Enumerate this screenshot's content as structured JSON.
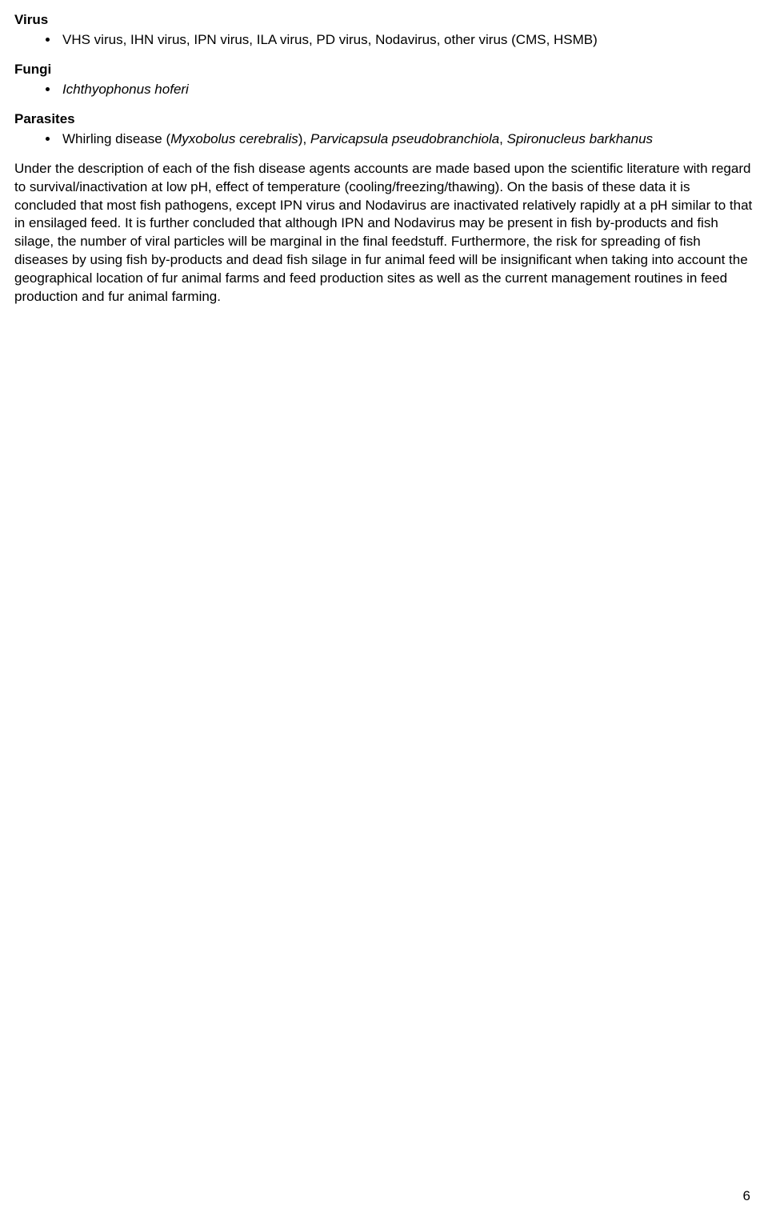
{
  "sections": {
    "virus": {
      "heading": "Virus",
      "item": "VHS virus, IHN virus, IPN virus, ILA virus, PD virus, Nodavirus, other virus (CMS, HSMB)"
    },
    "fungi": {
      "heading": "Fungi",
      "item": "Ichthyophonus hoferi"
    },
    "parasites": {
      "heading": "Parasites",
      "item_prefix": "Whirling disease (",
      "item_sp1": "Myxobolus cerebralis",
      "item_mid": "), ",
      "item_sp2": "Parvicapsula pseudobranchiola",
      "item_sep": ", ",
      "item_sp3": "Spironucleus barkhanus"
    }
  },
  "body": "Under the description of each of the fish disease agents accounts are made based upon the scientific literature with regard to survival/inactivation at low pH, effect of temperature (cooling/freezing/thawing). On the basis of these data it is concluded that most fish pathogens, except IPN virus and Nodavirus are inactivated relatively rapidly at a pH similar to that in ensilaged feed. It is further concluded that although IPN and Nodavirus may be present in fish by-products and fish silage, the number of viral particles will be marginal in the final feedstuff. Furthermore, the risk for spreading of fish diseases by using fish by-products and dead fish silage in fur animal feed will be insignificant when taking into account the geographical location of fur animal farms and feed production sites as well as the current management routines in feed production and fur animal farming.",
  "page_number": "6"
}
